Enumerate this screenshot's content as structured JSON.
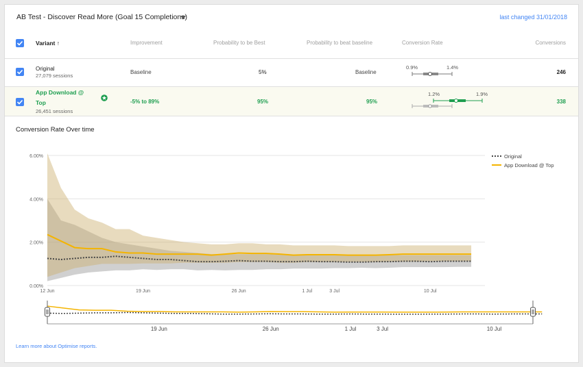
{
  "header": {
    "title": "AB Test - Discover Read More (Goal 15 Completions)",
    "last_changed": "last changed 31/01/2018"
  },
  "table": {
    "columns": {
      "variant": "Variant",
      "sort_arrow": "↑",
      "improvement": "Improvement",
      "prob_best": "Probability to be Best",
      "prob_baseline": "Probability to beat baseline",
      "conversion_rate": "Conversion Rate",
      "conversions": "Conversions"
    },
    "rows": [
      {
        "name": "Original",
        "sessions": "27,079 sessions",
        "improvement": "Baseline",
        "prob_best": "5%",
        "prob_baseline": "Baseline",
        "cr_low": "0.9%",
        "cr_high": "1.4%",
        "conversions": "246"
      },
      {
        "name_line1": "App Download @",
        "name_line2": "Top",
        "sessions": "26,451 sessions",
        "improvement": "-5% to 89%",
        "prob_best": "95%",
        "prob_baseline": "95%",
        "cr_low": "1.2%",
        "cr_high": "1.9%",
        "conversions": "338"
      }
    ]
  },
  "chart_section_title": "Conversion Rate Over time",
  "learn_more": "Learn more about Optimise reports.",
  "colors": {
    "accent": "#4285f4",
    "winner": "#1e9e50",
    "variant_line": "#f4b400",
    "original_line": "#444444"
  },
  "chart_data": {
    "type": "line",
    "y_tick_labels": [
      "0.00%",
      "2.00%",
      "4.00%",
      "6.00%"
    ],
    "ylim": [
      0,
      6
    ],
    "x_tick_labels": [
      "12 Jun",
      "19 Jun",
      "26 Jun",
      "1 Jul",
      "3 Jul",
      "10 Jul"
    ],
    "x_tick_days": [
      0,
      7,
      14,
      19,
      21,
      28
    ],
    "xlim": [
      0,
      32
    ],
    "legend_position": "top-right",
    "grid": true,
    "series": [
      {
        "name": "Original",
        "style": "dotted",
        "x": [
          0,
          1,
          2,
          3,
          4,
          5,
          6,
          7,
          8,
          9,
          10,
          11,
          12,
          13,
          14,
          15,
          16,
          17,
          18,
          19,
          20,
          21,
          22,
          23,
          24,
          25,
          26,
          27,
          28,
          29,
          30,
          31
        ],
        "values": [
          1.25,
          1.2,
          1.25,
          1.3,
          1.3,
          1.35,
          1.3,
          1.25,
          1.2,
          1.2,
          1.15,
          1.1,
          1.1,
          1.12,
          1.15,
          1.12,
          1.12,
          1.1,
          1.1,
          1.12,
          1.1,
          1.1,
          1.08,
          1.08,
          1.1,
          1.1,
          1.12,
          1.12,
          1.1,
          1.12,
          1.12,
          1.12
        ],
        "lower": [
          0.2,
          0.35,
          0.5,
          0.6,
          0.65,
          0.7,
          0.7,
          0.75,
          0.72,
          0.75,
          0.75,
          0.7,
          0.72,
          0.7,
          0.72,
          0.72,
          0.75,
          0.75,
          0.78,
          0.78,
          0.78,
          0.8,
          0.8,
          0.82,
          0.8,
          0.82,
          0.85,
          0.85,
          0.85,
          0.85,
          0.86,
          0.86
        ],
        "upper": [
          4.0,
          3.0,
          2.8,
          2.5,
          2.2,
          2.0,
          1.9,
          1.8,
          1.7,
          1.6,
          1.55,
          1.5,
          1.45,
          1.45,
          1.45,
          1.45,
          1.45,
          1.42,
          1.42,
          1.42,
          1.4,
          1.4,
          1.4,
          1.4,
          1.4,
          1.4,
          1.4,
          1.4,
          1.4,
          1.4,
          1.4,
          1.4
        ]
      },
      {
        "name": "App Download @ Top",
        "style": "solid",
        "x": [
          0,
          1,
          2,
          3,
          4,
          5,
          6,
          7,
          8,
          9,
          10,
          11,
          12,
          13,
          14,
          15,
          16,
          17,
          18,
          19,
          20,
          21,
          22,
          23,
          24,
          25,
          26,
          27,
          28,
          29,
          30,
          31
        ],
        "values": [
          2.35,
          2.05,
          1.75,
          1.7,
          1.7,
          1.55,
          1.5,
          1.5,
          1.45,
          1.45,
          1.45,
          1.45,
          1.4,
          1.45,
          1.5,
          1.48,
          1.48,
          1.45,
          1.4,
          1.42,
          1.42,
          1.42,
          1.4,
          1.4,
          1.4,
          1.42,
          1.45,
          1.45,
          1.45,
          1.45,
          1.45,
          1.45
        ],
        "lower": [
          0.4,
          0.6,
          0.8,
          0.9,
          1.0,
          1.0,
          1.0,
          1.02,
          1.02,
          1.02,
          1.05,
          1.05,
          1.05,
          1.05,
          1.08,
          1.08,
          1.08,
          1.05,
          1.05,
          1.08,
          1.08,
          1.08,
          1.08,
          1.08,
          1.08,
          1.1,
          1.1,
          1.1,
          1.12,
          1.12,
          1.12,
          1.12
        ],
        "upper": [
          6.1,
          4.5,
          3.5,
          3.1,
          2.9,
          2.6,
          2.6,
          2.3,
          2.2,
          2.1,
          2.0,
          1.95,
          1.9,
          1.9,
          1.95,
          1.95,
          1.9,
          1.9,
          1.85,
          1.85,
          1.85,
          1.85,
          1.82,
          1.82,
          1.82,
          1.82,
          1.85,
          1.85,
          1.85,
          1.85,
          1.85,
          1.85
        ]
      }
    ]
  }
}
